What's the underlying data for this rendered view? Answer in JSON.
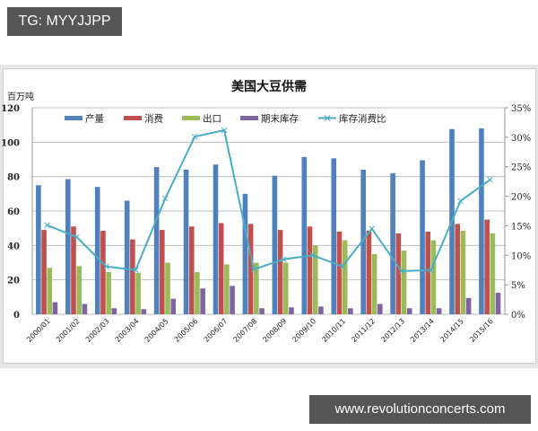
{
  "watermarks": {
    "top_left": "TG: MYYJJPP",
    "bottom_right": "www.revolutionconcerts.com"
  },
  "colors": {
    "production": "#4f81bd",
    "consumption": "#c0504d",
    "export": "#9bbb59",
    "ending_stock": "#8064a2",
    "ratio_line": "#4bacc6",
    "gridline": "#bfbfbf",
    "watermark_bg": "#555555"
  },
  "chart_data": {
    "type": "bar",
    "title": "美国大豆供需",
    "xlabel": "",
    "ylabel": "百万吨",
    "ylabel_right": "",
    "ylim": [
      0,
      120
    ],
    "ylim_right": [
      0,
      35
    ],
    "y_ticks": [
      "0",
      "20",
      "40",
      "60",
      "80",
      "100",
      "120"
    ],
    "y_ticks_right": [
      "0%",
      "5%",
      "10%",
      "15%",
      "20%",
      "25%",
      "30%",
      "35%"
    ],
    "grid": true,
    "legend_position": "top-inside",
    "categories": [
      "2000/01",
      "2001/02",
      "2002/03",
      "2003/04",
      "2004/05",
      "2005/06",
      "2006/07",
      "2007/08",
      "2008/09",
      "2009/10",
      "2010/11",
      "2011/12",
      "2012/13",
      "2013/14",
      "2014/15",
      "2015/16"
    ],
    "series": [
      {
        "name": "产量",
        "type": "bar",
        "axis": "left",
        "values": [
          75,
          78.5,
          74,
          66,
          85.5,
          84,
          87,
          70,
          80.5,
          91.4,
          90.6,
          84,
          82,
          89.5,
          107.6,
          108
        ]
      },
      {
        "name": "消费",
        "type": "bar",
        "axis": "left",
        "values": [
          49,
          51,
          48.5,
          43.5,
          49,
          51,
          53,
          52.5,
          49,
          51,
          48,
          48.5,
          47,
          48,
          52.5,
          55
        ]
      },
      {
        "name": "出口",
        "type": "bar",
        "axis": "left",
        "values": [
          27,
          28,
          24.5,
          24,
          30,
          24.5,
          29,
          30,
          30,
          40,
          43,
          35,
          37,
          43,
          48.5,
          47
        ]
      },
      {
        "name": "期末库存",
        "type": "bar",
        "axis": "left",
        "values": [
          7,
          6,
          3.5,
          3,
          9,
          15,
          16.5,
          3.5,
          4,
          4.5,
          3.5,
          6,
          3.5,
          3.5,
          9.5,
          12.5
        ]
      },
      {
        "name": "库存消费比",
        "type": "line",
        "axis": "right",
        "unit": "%",
        "values": [
          15.1,
          13.1,
          8.1,
          7.5,
          19.6,
          30.1,
          31.2,
          7.6,
          9.3,
          10.0,
          8.1,
          14.5,
          7.3,
          7.5,
          19.2,
          22.8
        ]
      }
    ]
  }
}
